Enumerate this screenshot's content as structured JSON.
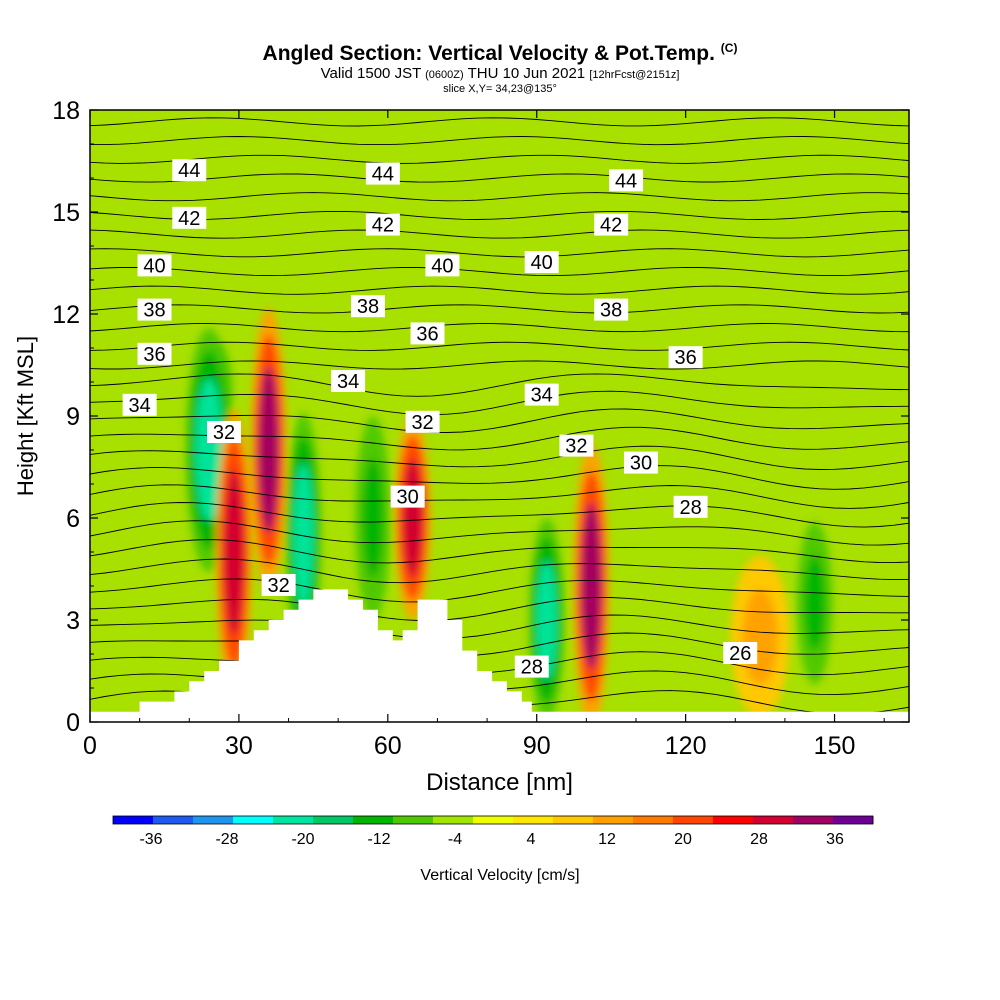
{
  "title": {
    "main": "Angled Section: Vertical Velocity & Pot.Temp.",
    "copyright": "(C)",
    "valid_prefix": "Valid 1500 JST",
    "valid_utc": "(0600Z)",
    "valid_date": "THU 10 Jun 2021",
    "forecast": "[12hrFcst@2151z]",
    "slice": "slice X,Y= 34,23@135°"
  },
  "chart_data": {
    "type": "heatmap",
    "xlabel": "Distance [nm]",
    "ylabel": "Height [Kft MSL]",
    "xlim": [
      0,
      165
    ],
    "ylim": [
      0,
      18
    ],
    "xticks": [
      "0",
      "30",
      "60",
      "90",
      "120",
      "150"
    ],
    "xtick_values": [
      0,
      30,
      60,
      90,
      120,
      150
    ],
    "yticks": [
      "0",
      "3",
      "6",
      "9",
      "12",
      "15",
      "18"
    ],
    "ytick_values": [
      0,
      3,
      6,
      9,
      12,
      15,
      18
    ],
    "colorbar": {
      "label": "Vertical Velocity [cm/s]",
      "range": [
        -40,
        40
      ],
      "tick_labels": [
        "-36",
        "-28",
        "-20",
        "-12",
        "-4",
        "4",
        "12",
        "20",
        "28",
        "36"
      ],
      "tick_values": [
        -36,
        -28,
        -20,
        -12,
        -4,
        4,
        12,
        20,
        28,
        36
      ],
      "colors": [
        "#0000ff",
        "#1e5af0",
        "#1e96f0",
        "#00ffff",
        "#00e6a0",
        "#00c864",
        "#00b400",
        "#50c800",
        "#a0e600",
        "#f0ff00",
        "#ffe600",
        "#ffc800",
        "#ffa000",
        "#ff7800",
        "#ff4600",
        "#ff0000",
        "#d20032",
        "#a00064",
        "#6e0096"
      ]
    },
    "terrain_profile": [
      [
        0,
        0.3
      ],
      [
        10,
        0.3
      ],
      [
        10,
        0.6
      ],
      [
        17,
        0.6
      ],
      [
        17,
        0.9
      ],
      [
        20,
        0.9
      ],
      [
        20,
        1.2
      ],
      [
        23,
        1.2
      ],
      [
        23,
        1.5
      ],
      [
        26,
        1.5
      ],
      [
        26,
        1.8
      ],
      [
        30,
        1.8
      ],
      [
        30,
        2.4
      ],
      [
        33,
        2.4
      ],
      [
        33,
        2.7
      ],
      [
        36,
        2.7
      ],
      [
        36,
        3.0
      ],
      [
        39,
        3.0
      ],
      [
        39,
        3.3
      ],
      [
        42,
        3.3
      ],
      [
        42,
        3.6
      ],
      [
        45,
        3.6
      ],
      [
        45,
        3.9
      ],
      [
        52,
        3.9
      ],
      [
        52,
        3.6
      ],
      [
        55,
        3.6
      ],
      [
        55,
        3.3
      ],
      [
        58,
        3.3
      ],
      [
        58,
        2.7
      ],
      [
        61,
        2.7
      ],
      [
        61,
        2.4
      ],
      [
        63,
        2.4
      ],
      [
        63,
        2.7
      ],
      [
        66,
        2.7
      ],
      [
        66,
        3.6
      ],
      [
        72,
        3.6
      ],
      [
        72,
        3.0
      ],
      [
        75,
        3.0
      ],
      [
        75,
        2.1
      ],
      [
        78,
        2.1
      ],
      [
        78,
        1.5
      ],
      [
        81,
        1.5
      ],
      [
        81,
        1.2
      ],
      [
        84,
        1.2
      ],
      [
        84,
        0.9
      ],
      [
        87,
        0.9
      ],
      [
        87,
        0.6
      ],
      [
        89,
        0.6
      ],
      [
        89,
        0.3
      ],
      [
        165,
        0.3
      ]
    ],
    "velocity_cells": [
      {
        "x": 25,
        "y": 9.5,
        "rx": 3,
        "ry": 1.5,
        "value": -28
      },
      {
        "x": 24,
        "y": 8.0,
        "rx": 4,
        "ry": 3,
        "value": -20
      },
      {
        "x": 29,
        "y": 5.0,
        "rx": 3,
        "ry": 3.5,
        "value": 28
      },
      {
        "x": 36,
        "y": 8.0,
        "rx": 3,
        "ry": 3.5,
        "value": 32
      },
      {
        "x": 43,
        "y": 5.5,
        "rx": 3,
        "ry": 3,
        "value": -20
      },
      {
        "x": 57,
        "y": 6.0,
        "rx": 3,
        "ry": 2.5,
        "value": -12
      },
      {
        "x": 65,
        "y": 6.0,
        "rx": 3,
        "ry": 2.5,
        "value": 28
      },
      {
        "x": 92,
        "y": 3.0,
        "rx": 3,
        "ry": 2.5,
        "value": -20
      },
      {
        "x": 101,
        "y": 4.0,
        "rx": 3,
        "ry": 3.5,
        "value": 32
      },
      {
        "x": 135,
        "y": 2.5,
        "rx": 5,
        "ry": 2,
        "value": 12
      },
      {
        "x": 146,
        "y": 3.5,
        "rx": 3,
        "ry": 2,
        "value": -12
      }
    ],
    "theta_contour_labels": [
      {
        "text": "44",
        "x": 20,
        "y": 16.2
      },
      {
        "text": "44",
        "x": 59,
        "y": 16.1
      },
      {
        "text": "44",
        "x": 108,
        "y": 15.9
      },
      {
        "text": "42",
        "x": 20,
        "y": 14.8
      },
      {
        "text": "42",
        "x": 59,
        "y": 14.6
      },
      {
        "text": "42",
        "x": 105,
        "y": 14.6
      },
      {
        "text": "40",
        "x": 13,
        "y": 13.4
      },
      {
        "text": "40",
        "x": 71,
        "y": 13.4
      },
      {
        "text": "40",
        "x": 91,
        "y": 13.5
      },
      {
        "text": "38",
        "x": 13,
        "y": 12.1
      },
      {
        "text": "38",
        "x": 56,
        "y": 12.2
      },
      {
        "text": "38",
        "x": 105,
        "y": 12.1
      },
      {
        "text": "36",
        "x": 13,
        "y": 10.8
      },
      {
        "text": "36",
        "x": 68,
        "y": 11.4
      },
      {
        "text": "36",
        "x": 120,
        "y": 10.7
      },
      {
        "text": "34",
        "x": 10,
        "y": 9.3
      },
      {
        "text": "34",
        "x": 52,
        "y": 10.0
      },
      {
        "text": "34",
        "x": 91,
        "y": 9.6
      },
      {
        "text": "32",
        "x": 27,
        "y": 8.5
      },
      {
        "text": "32",
        "x": 67,
        "y": 8.8
      },
      {
        "text": "32",
        "x": 98,
        "y": 8.1
      },
      {
        "text": "30",
        "x": 64,
        "y": 6.6
      },
      {
        "text": "30",
        "x": 111,
        "y": 7.6
      },
      {
        "text": "28",
        "x": 121,
        "y": 6.3
      },
      {
        "text": "32",
        "x": 38,
        "y": 4.0
      },
      {
        "text": "28",
        "x": 89,
        "y": 1.6
      },
      {
        "text": "26",
        "x": 131,
        "y": 2.0
      }
    ]
  }
}
